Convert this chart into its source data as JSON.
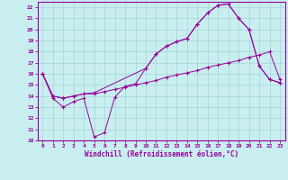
{
  "xlabel": "Windchill (Refroidissement éolien,°C)",
  "xlim": [
    -0.5,
    23.5
  ],
  "ylim": [
    10,
    22.5
  ],
  "xticks": [
    0,
    1,
    2,
    3,
    4,
    5,
    6,
    7,
    8,
    9,
    10,
    11,
    12,
    13,
    14,
    15,
    16,
    17,
    18,
    19,
    20,
    21,
    22,
    23
  ],
  "yticks": [
    10,
    11,
    12,
    13,
    14,
    15,
    16,
    17,
    18,
    19,
    20,
    21,
    22
  ],
  "bg_color": "#c8eef0",
  "line_color": "#990099",
  "grid_color": "#9ecfcf",
  "line1_x": [
    0,
    1,
    2,
    3,
    4,
    5,
    6,
    7,
    8,
    9,
    10,
    11,
    12,
    13,
    14,
    15,
    16,
    17,
    18,
    19,
    20,
    21,
    22,
    23
  ],
  "line1_y": [
    16,
    13.8,
    13.0,
    13.5,
    13.8,
    10.3,
    10.7,
    13.9,
    14.9,
    15.1,
    16.5,
    17.8,
    18.5,
    18.9,
    19.2,
    20.5,
    21.5,
    22.2,
    22.3,
    21.0,
    20.0,
    16.7,
    15.5,
    15.2
  ],
  "line2_x": [
    0,
    1,
    2,
    3,
    4,
    5,
    6,
    7,
    8,
    9,
    10,
    11,
    12,
    13,
    14,
    15,
    16,
    17,
    18,
    19,
    20,
    21,
    22,
    23
  ],
  "line2_y": [
    16.0,
    14.0,
    13.8,
    14.0,
    14.2,
    14.2,
    14.4,
    14.6,
    14.8,
    15.0,
    15.2,
    15.4,
    15.7,
    15.9,
    16.1,
    16.3,
    16.6,
    16.8,
    17.0,
    17.2,
    17.5,
    17.7,
    18.0,
    15.5
  ],
  "line3_x": [
    0,
    1,
    2,
    3,
    4,
    5,
    10,
    11,
    12,
    13,
    14,
    15,
    16,
    17,
    18,
    19,
    20,
    21,
    22,
    23
  ],
  "line3_y": [
    16.0,
    14.0,
    13.8,
    14.0,
    14.2,
    14.3,
    16.5,
    17.8,
    18.5,
    18.9,
    19.2,
    20.5,
    21.5,
    22.2,
    22.3,
    21.0,
    20.0,
    16.7,
    15.5,
    15.2
  ]
}
